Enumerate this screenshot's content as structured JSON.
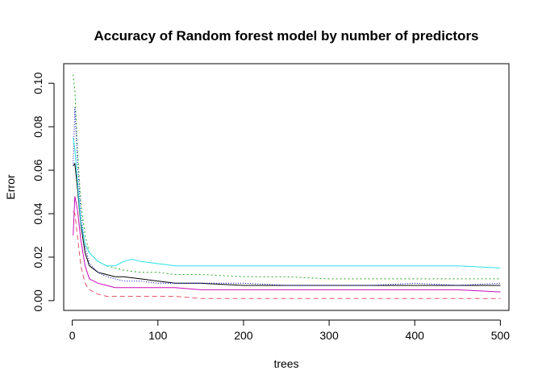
{
  "chart_data": {
    "type": "line",
    "title": "Accuracy of Random forest model by number of predictors",
    "xlabel": "trees",
    "ylabel": "Error",
    "xlim": [
      0,
      500
    ],
    "ylim": [
      0,
      0.105
    ],
    "x_ticks": [
      0,
      100,
      200,
      300,
      400,
      500
    ],
    "x_tick_labels": [
      "0",
      "100",
      "200",
      "300",
      "400",
      "500"
    ],
    "y_ticks": [
      0.0,
      0.02,
      0.04,
      0.06,
      0.08,
      0.1
    ],
    "y_tick_labels": [
      "0.00",
      "0.02",
      "0.04",
      "0.06",
      "0.08",
      "0.10"
    ],
    "grid": false,
    "legend": "none",
    "series": [
      {
        "color": "#000000",
        "dash": "",
        "x": [
          1,
          3,
          6,
          10,
          15,
          20,
          30,
          40,
          50,
          60,
          80,
          100,
          120,
          150,
          200,
          250,
          300,
          350,
          400,
          450,
          500
        ],
        "y": [
          0.062,
          0.063,
          0.052,
          0.035,
          0.022,
          0.016,
          0.013,
          0.012,
          0.011,
          0.011,
          0.01,
          0.009,
          0.008,
          0.008,
          0.007,
          0.007,
          0.007,
          0.007,
          0.007,
          0.007,
          0.007
        ]
      },
      {
        "color": "#DF536B",
        "dash": "6,4",
        "x": [
          1,
          3,
          6,
          10,
          15,
          20,
          30,
          40,
          50,
          60,
          80,
          100,
          120,
          150,
          200,
          250,
          300,
          350,
          400,
          450,
          500
        ],
        "y": [
          0.041,
          0.04,
          0.03,
          0.016,
          0.008,
          0.005,
          0.003,
          0.002,
          0.002,
          0.002,
          0.002,
          0.002,
          0.002,
          0.001,
          0.001,
          0.001,
          0.001,
          0.001,
          0.001,
          0.001,
          0.001
        ]
      },
      {
        "color": "#22AA22",
        "dash": "2,3",
        "x": [
          1,
          3,
          6,
          10,
          15,
          20,
          30,
          40,
          50,
          60,
          80,
          100,
          120,
          150,
          200,
          250,
          300,
          350,
          400,
          450,
          500
        ],
        "y": [
          0.104,
          0.097,
          0.07,
          0.045,
          0.03,
          0.022,
          0.018,
          0.016,
          0.015,
          0.014,
          0.013,
          0.013,
          0.012,
          0.012,
          0.011,
          0.011,
          0.01,
          0.01,
          0.01,
          0.01,
          0.01
        ]
      },
      {
        "color": "#0000CC",
        "dash": "1,2",
        "x": [
          1,
          3,
          6,
          10,
          15,
          20,
          30,
          40,
          50,
          60,
          80,
          100,
          120,
          150,
          200,
          250,
          300,
          350,
          400,
          450,
          500
        ],
        "y": [
          0.062,
          0.089,
          0.065,
          0.04,
          0.025,
          0.017,
          0.013,
          0.011,
          0.01,
          0.009,
          0.009,
          0.008,
          0.008,
          0.008,
          0.008,
          0.007,
          0.007,
          0.007,
          0.008,
          0.007,
          0.008
        ]
      },
      {
        "color": "#28E2E5",
        "dash": "",
        "x": [
          1,
          3,
          6,
          10,
          15,
          20,
          30,
          40,
          50,
          60,
          70,
          80,
          100,
          120,
          150,
          200,
          250,
          300,
          350,
          400,
          450,
          500
        ],
        "y": [
          0.075,
          0.07,
          0.055,
          0.036,
          0.026,
          0.022,
          0.018,
          0.016,
          0.016,
          0.018,
          0.019,
          0.018,
          0.017,
          0.016,
          0.016,
          0.016,
          0.016,
          0.016,
          0.016,
          0.016,
          0.016,
          0.015
        ]
      },
      {
        "color": "#CD0BBC",
        "dash": "",
        "x": [
          1,
          3,
          6,
          10,
          15,
          20,
          30,
          40,
          50,
          60,
          80,
          100,
          120,
          150,
          200,
          250,
          300,
          350,
          400,
          450,
          500
        ],
        "y": [
          0.03,
          0.048,
          0.042,
          0.028,
          0.016,
          0.01,
          0.008,
          0.007,
          0.006,
          0.006,
          0.006,
          0.006,
          0.006,
          0.005,
          0.005,
          0.005,
          0.005,
          0.005,
          0.005,
          0.005,
          0.004
        ]
      }
    ]
  }
}
